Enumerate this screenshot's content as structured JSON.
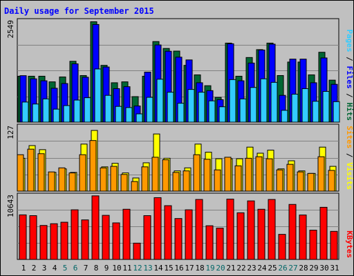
{
  "chart_data": [
    {
      "type": "bar",
      "title": "Daily usage for September 2015",
      "ymax_label": "2549",
      "legend": [
        "Pages",
        "Files",
        "Hits"
      ],
      "ymax": 2549,
      "series": [
        {
          "name": "Hits",
          "color": "#006633",
          "values": [
            1166,
            1166,
            1166,
            1023,
            1147,
            1545,
            1183,
            2549,
            1442,
            1000,
            1023,
            648,
            1166,
            2046,
            1871,
            1804,
            1442,
            1200,
            925,
            627,
            2007,
            1166,
            1641,
            1841,
            2007,
            1183,
            1526,
            1526,
            1200,
            1774,
            1066
          ]
        },
        {
          "name": "Files",
          "color": "#0000ff",
          "values": [
            1180,
            1100,
            1050,
            860,
            980,
            1480,
            1140,
            2480,
            1400,
            850,
            900,
            410,
            1270,
            1960,
            1800,
            1650,
            1580,
            1000,
            800,
            570,
            1990,
            1050,
            1500,
            1830,
            1980,
            680,
            1600,
            1600,
            1000,
            1630,
            960
          ]
        },
        {
          "name": "Pages",
          "color": "#33ccff",
          "values": [
            510,
            460,
            590,
            330,
            420,
            560,
            620,
            1350,
            680,
            400,
            370,
            210,
            630,
            1090,
            760,
            480,
            830,
            760,
            540,
            390,
            1080,
            590,
            880,
            1100,
            1010,
            300,
            710,
            850,
            530,
            780,
            520
          ]
        }
      ],
      "categories": [
        "1",
        "2",
        "3",
        "4",
        "5",
        "6",
        "7",
        "8",
        "9",
        "10",
        "11",
        "12",
        "13",
        "14",
        "15",
        "16",
        "17",
        "18",
        "19",
        "20",
        "21",
        "22",
        "23",
        "24",
        "25",
        "26",
        "27",
        "28",
        "29",
        "30",
        "31"
      ]
    },
    {
      "type": "bar",
      "ymax_label": "127",
      "legend": [
        "Sites",
        "Visits"
      ],
      "ymax": 127,
      "series": [
        {
          "name": "Visits",
          "color": "#ffff00",
          "values": [
            65,
            90,
            82,
            37,
            44,
            37,
            93,
            120,
            48,
            55,
            36,
            26,
            56,
            113,
            65,
            40,
            46,
            93,
            77,
            64,
            64,
            64,
            87,
            75,
            81,
            44,
            60,
            40,
            35,
            87,
            49
          ]
        },
        {
          "name": "Sites",
          "color": "#ff9900",
          "values": [
            72,
            83,
            74,
            38,
            46,
            36,
            72,
            100,
            46,
            49,
            33,
            19,
            48,
            67,
            62,
            37,
            40,
            72,
            63,
            42,
            67,
            50,
            65,
            68,
            64,
            42,
            53,
            38,
            35,
            68,
            41
          ]
        }
      ]
    },
    {
      "type": "bar",
      "ymax_label": "10643",
      "legend": [
        "KBytes"
      ],
      "ymax": 10643,
      "series": [
        {
          "name": "KBytes",
          "color": "#ff0000",
          "values": [
            7460,
            7330,
            5690,
            5980,
            6230,
            8310,
            6620,
            10643,
            7380,
            6120,
            8400,
            2730,
            7330,
            10342,
            9000,
            6850,
            8310,
            10040,
            5640,
            5240,
            10100,
            7810,
            9800,
            8400,
            10040,
            4200,
            9210,
            7440,
            4900,
            8730,
            4700
          ]
        }
      ]
    }
  ],
  "x_label_colors": {
    "weekday": "#000000",
    "weekend": "#006666"
  },
  "weekend_days": [
    5,
    6,
    12,
    13,
    19,
    20,
    26,
    27
  ]
}
